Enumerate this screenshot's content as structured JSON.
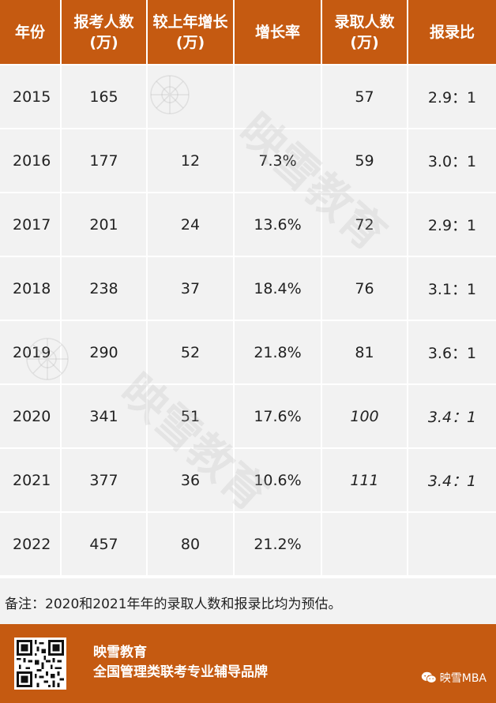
{
  "table": {
    "headers": [
      [
        "年份"
      ],
      [
        "报考人数",
        "(万)"
      ],
      [
        "较上年增长",
        "(万)"
      ],
      [
        "增长率"
      ],
      [
        "录取人数",
        "(万)"
      ],
      [
        "报录比"
      ]
    ],
    "rows": [
      [
        "2015",
        "165",
        "",
        "",
        "57",
        "2.9：1"
      ],
      [
        "2016",
        "177",
        "12",
        "7.3%",
        "59",
        "3.0：1"
      ],
      [
        "2017",
        "201",
        "24",
        "13.6%",
        "72",
        "2.9：1"
      ],
      [
        "2018",
        "238",
        "37",
        "18.4%",
        "76",
        "3.1：1"
      ],
      [
        "2019",
        "290",
        "52",
        "21.8%",
        "81",
        "3.6：1"
      ],
      [
        "2020",
        "341",
        "51",
        "17.6%",
        "100",
        "3.4：1"
      ],
      [
        "2021",
        "377",
        "36",
        "10.6%",
        "111",
        "3.4：1"
      ],
      [
        "2022",
        "457",
        "80",
        "21.2%",
        "",
        ""
      ]
    ]
  },
  "note": "备注：2020和2021年年的录取人数和报录比均为预估。",
  "footer": {
    "brand_name": "映雪教育",
    "slogan": "全国管理类联考专业辅导品牌",
    "account": "映雪MBA",
    "qr_icon": "qr-code-icon",
    "wechat_icon": "wechat-icon"
  },
  "colors": {
    "accent": "#c55a11",
    "cell_bg": "#f2f2f2"
  }
}
